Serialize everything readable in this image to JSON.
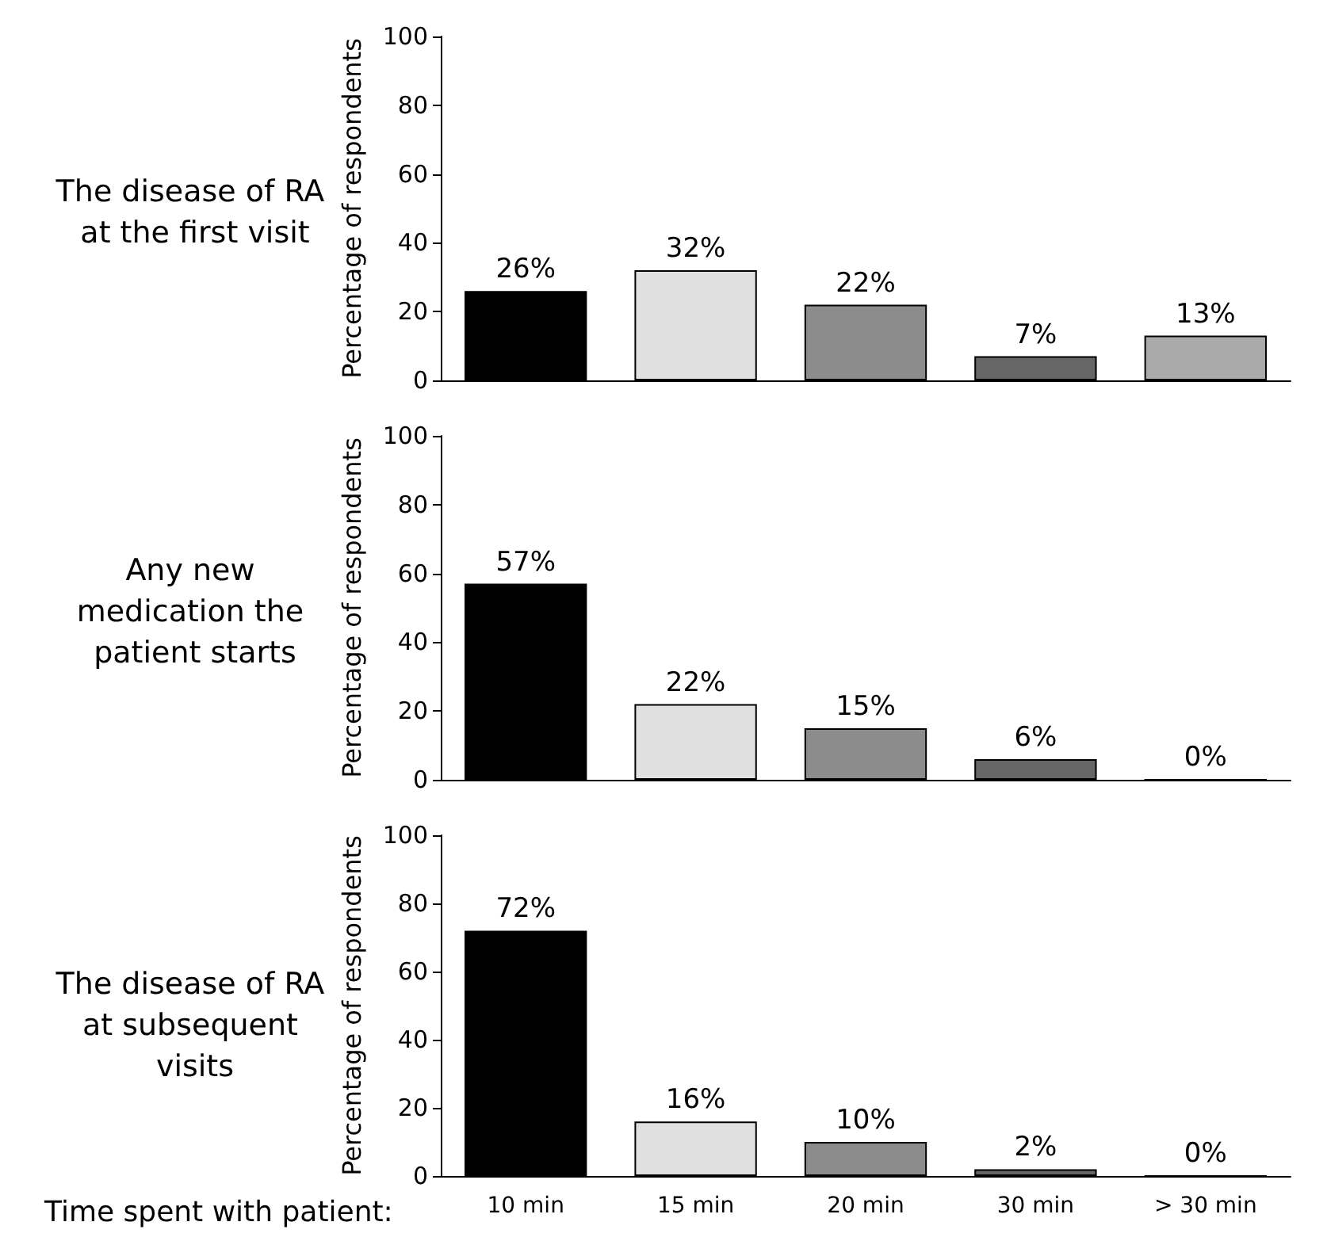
{
  "chart_data": [
    {
      "type": "bar",
      "title": "The disease of RA at the first visit",
      "ylabel": "Percentage of respondents",
      "categories": [
        "10 min",
        "15 min",
        "20 min",
        "30 min",
        "> 30 min"
      ],
      "values": [
        26,
        32,
        22,
        7,
        13
      ],
      "colors": [
        "#000000",
        "#e0e0e0",
        "#8c8c8c",
        "#666666",
        "#aaaaaa"
      ],
      "value_labels": [
        "26%",
        "32%",
        "22%",
        "7%",
        "13%"
      ],
      "ylim": [
        0,
        100
      ],
      "yticks": [
        0,
        20,
        40,
        60,
        80,
        100
      ],
      "grid": false,
      "tick_labels": "y"
    },
    {
      "type": "bar",
      "title": "Any new medication the patient starts",
      "ylabel": "Percentage of respondents",
      "categories": [
        "10 min",
        "15 min",
        "20 min",
        "30 min",
        "> 30 min"
      ],
      "values": [
        57,
        22,
        15,
        6,
        0
      ],
      "colors": [
        "#000000",
        "#e0e0e0",
        "#8c8c8c",
        "#666666",
        "#aaaaaa"
      ],
      "value_labels": [
        "57%",
        "22%",
        "15%",
        "6%",
        "0%"
      ],
      "ylim": [
        0,
        100
      ],
      "yticks": [
        0,
        20,
        40,
        60,
        80,
        100
      ],
      "grid": false,
      "tick_labels": "y"
    },
    {
      "type": "bar",
      "title": "The disease of RA at subsequent visits",
      "ylabel": "Percentage of respondents",
      "xlabel": "Time spent with patient:",
      "categories": [
        "10 min",
        "15 min",
        "20 min",
        "30 min",
        "> 30 min"
      ],
      "values": [
        72,
        16,
        10,
        2,
        0
      ],
      "colors": [
        "#000000",
        "#e0e0e0",
        "#8c8c8c",
        "#666666",
        "#aaaaaa"
      ],
      "value_labels": [
        "72%",
        "16%",
        "10%",
        "2%",
        "0%"
      ],
      "ylim": [
        0,
        100
      ],
      "yticks": [
        0,
        20,
        40,
        60,
        80,
        100
      ],
      "grid": false
    }
  ]
}
